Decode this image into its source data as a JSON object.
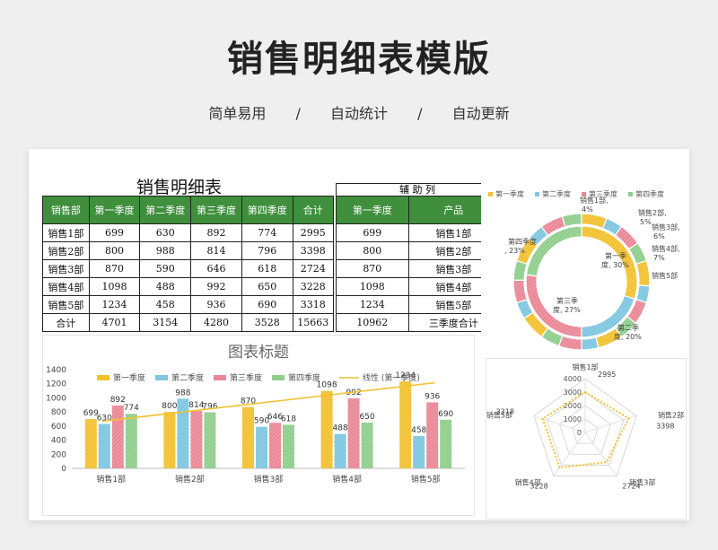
{
  "page": {
    "title": "销售明细表模版",
    "subtitle": [
      "简单易用",
      "/",
      "自动统计",
      "/",
      "自动更新"
    ]
  },
  "table": {
    "title": "销售明细表",
    "headers": [
      "销售部",
      "第一季度",
      "第二季度",
      "第三季度",
      "第四季度",
      "合计"
    ],
    "rows": [
      [
        "销售1部",
        "699",
        "630",
        "892",
        "774",
        "2995"
      ],
      [
        "销售2部",
        "800",
        "988",
        "814",
        "796",
        "3398"
      ],
      [
        "销售3部",
        "870",
        "590",
        "646",
        "618",
        "2724"
      ],
      [
        "销售4部",
        "1098",
        "488",
        "992",
        "650",
        "3228"
      ],
      [
        "销售5部",
        "1234",
        "458",
        "936",
        "690",
        "3318"
      ],
      [
        "合计",
        "4701",
        "3154",
        "4280",
        "3528",
        "15663"
      ]
    ]
  },
  "aux_table": {
    "title": "辅 助 列",
    "headers": [
      "第一季度",
      "产品"
    ],
    "rows": [
      [
        "699",
        "销售1部"
      ],
      [
        "800",
        "销售2部"
      ],
      [
        "870",
        "销售3部"
      ],
      [
        "1098",
        "销售4部"
      ],
      [
        "1234",
        "销售5部"
      ],
      [
        "10962",
        "三季度合计"
      ]
    ]
  },
  "colors": {
    "q1": "#f2c12e",
    "q2": "#7ec6e0",
    "q3": "#ea8796",
    "q4": "#8fce8c",
    "header_green": "#3f8f3c"
  },
  "chart_data": [
    {
      "type": "bar",
      "title": "图表标题",
      "categories": [
        "销售1部",
        "销售2部",
        "销售3部",
        "销售4部",
        "销售5部"
      ],
      "series": [
        {
          "name": "第一季度",
          "values": [
            699,
            800,
            870,
            1098,
            1234
          ]
        },
        {
          "name": "第二季度",
          "values": [
            630,
            988,
            590,
            488,
            458
          ]
        },
        {
          "name": "第三季度",
          "values": [
            892,
            814,
            646,
            992,
            936
          ]
        },
        {
          "name": "第四季度",
          "values": [
            774,
            796,
            618,
            650,
            690
          ]
        }
      ],
      "trendline": {
        "name": "线性 (第一季度)"
      },
      "yticks": [
        "0",
        "200",
        "400",
        "600",
        "800",
        "1000",
        "1200",
        "1400"
      ],
      "ylim": [
        0,
        1400
      ],
      "legend": "top"
    },
    {
      "type": "pie",
      "subtype": "doughnut",
      "legend_items": [
        "第一季度",
        "第二季度",
        "第三季度",
        "第四季度"
      ],
      "rings": [
        {
          "name": "quarters",
          "labels": [
            "第一季度",
            "第二季度",
            "第三季度",
            "第四季度"
          ],
          "values": [
            30,
            20,
            27,
            23
          ]
        },
        {
          "name": "departments",
          "labels": [
            "销售1部",
            "销售2部",
            "销售3部",
            "销售4部",
            "销售5部"
          ],
          "values": [
            4,
            5,
            6,
            7,
            8
          ]
        }
      ],
      "data_labels": [
        {
          "text": "销售1部,",
          "text2": "4%"
        },
        {
          "text": "销售2部,",
          "text2": "5%"
        },
        {
          "text": "销售3部,",
          "text2": "6%"
        },
        {
          "text": "销售4部,",
          "text2": "7%"
        },
        {
          "text": "销售5部",
          "text2": ""
        },
        {
          "text": "第一季",
          "text2": "度, 30%"
        },
        {
          "text": "第二季",
          "text2": "度, 20%"
        },
        {
          "text": "第三季",
          "text2": "度, 27%"
        },
        {
          "text": "第四季度",
          "text2": ", 23%"
        }
      ],
      "legend": "top"
    },
    {
      "type": "radar",
      "categories": [
        "销售1部",
        "销售2部",
        "销售3部",
        "销售4部",
        "销售5部"
      ],
      "values": [
        2995,
        3398,
        2724,
        3228,
        3318
      ],
      "rticks": [
        "0",
        "1000",
        "2000",
        "3000",
        "4000"
      ],
      "rlim": [
        0,
        4000
      ]
    }
  ]
}
